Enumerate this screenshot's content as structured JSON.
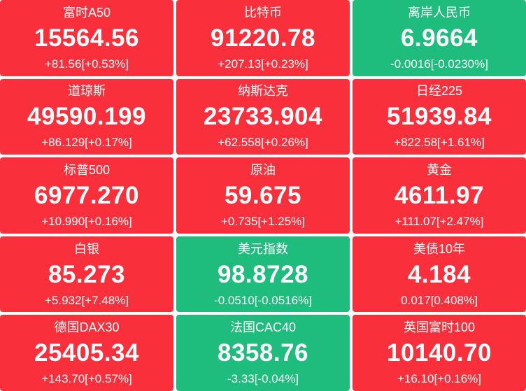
{
  "page": {
    "background": "#ffffff"
  },
  "colors": {
    "up": "#f9303c",
    "down": "#1fbd7d",
    "text": "#ffffff"
  },
  "tiles": [
    {
      "name": "富时A50",
      "value": "15564.56",
      "change": "+81.56[+0.53%]",
      "trend": "up"
    },
    {
      "name": "比特币",
      "value": "91220.78",
      "change": "+207.13[+0.23%]",
      "trend": "up"
    },
    {
      "name": "离岸人民币",
      "value": "6.9664",
      "change": "-0.0016[-0.0230%]",
      "trend": "down"
    },
    {
      "name": "道琼斯",
      "value": "49590.199",
      "change": "+86.129[+0.17%]",
      "trend": "up"
    },
    {
      "name": "纳斯达克",
      "value": "23733.904",
      "change": "+62.558[+0.26%]",
      "trend": "up"
    },
    {
      "name": "日经225",
      "value": "51939.84",
      "change": "+822.58[+1.61%]",
      "trend": "up"
    },
    {
      "name": "标普500",
      "value": "6977.270",
      "change": "+10.990[+0.16%]",
      "trend": "up"
    },
    {
      "name": "原油",
      "value": "59.675",
      "change": "+0.735[+1.25%]",
      "trend": "up"
    },
    {
      "name": "黄金",
      "value": "4611.97",
      "change": "+111.07[+2.47%]",
      "trend": "up"
    },
    {
      "name": "白银",
      "value": "85.273",
      "change": "+5.932[+7.48%]",
      "trend": "up"
    },
    {
      "name": "美元指数",
      "value": "98.8728",
      "change": "-0.0510[-0.0516%]",
      "trend": "down"
    },
    {
      "name": "美债10年",
      "value": "4.184",
      "change": "0.017[0.408%]",
      "trend": "up"
    },
    {
      "name": "德国DAX30",
      "value": "25405.34",
      "change": "+143.70[+0.57%]",
      "trend": "up"
    },
    {
      "name": "法国CAC40",
      "value": "8358.76",
      "change": "-3.33[-0.04%]",
      "trend": "down"
    },
    {
      "name": "英国富时100",
      "value": "10140.70",
      "change": "+16.10[+0.16%]",
      "trend": "up"
    }
  ]
}
